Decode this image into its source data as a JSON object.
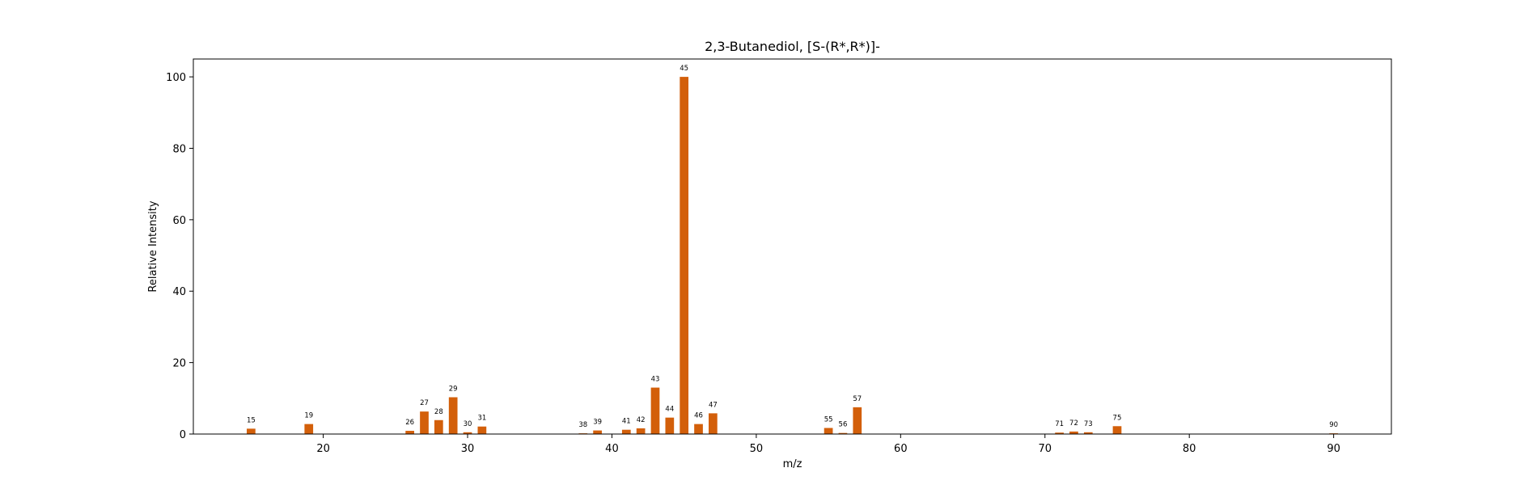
{
  "chart_data": {
    "type": "bar",
    "title": "2,3-Butanediol, [S-(R*,R*)]-",
    "xlabel": "m/z",
    "ylabel": "Relative Intensity",
    "xlim": [
      11,
      94
    ],
    "ylim": [
      0,
      105
    ],
    "x_ticks": [
      20,
      30,
      40,
      50,
      60,
      70,
      80,
      90
    ],
    "y_ticks": [
      0,
      20,
      40,
      60,
      80,
      100
    ],
    "grid": false,
    "bar_color": "#d35f0a",
    "peaks": [
      {
        "mz": 15,
        "intensity": 1.5,
        "label": "15"
      },
      {
        "mz": 19,
        "intensity": 2.8,
        "label": "19"
      },
      {
        "mz": 26,
        "intensity": 0.9,
        "label": "26"
      },
      {
        "mz": 27,
        "intensity": 6.3,
        "label": "27"
      },
      {
        "mz": 28,
        "intensity": 3.9,
        "label": "28"
      },
      {
        "mz": 29,
        "intensity": 10.3,
        "label": "29"
      },
      {
        "mz": 30,
        "intensity": 0.5,
        "label": "30"
      },
      {
        "mz": 31,
        "intensity": 2.1,
        "label": "31"
      },
      {
        "mz": 38,
        "intensity": 0.2,
        "label": "38"
      },
      {
        "mz": 39,
        "intensity": 1.0,
        "label": "39"
      },
      {
        "mz": 41,
        "intensity": 1.2,
        "label": "41"
      },
      {
        "mz": 42,
        "intensity": 1.6,
        "label": "42"
      },
      {
        "mz": 43,
        "intensity": 13.0,
        "label": "43"
      },
      {
        "mz": 44,
        "intensity": 4.6,
        "label": "44"
      },
      {
        "mz": 45,
        "intensity": 100.0,
        "label": "45"
      },
      {
        "mz": 46,
        "intensity": 2.8,
        "label": "46"
      },
      {
        "mz": 47,
        "intensity": 5.8,
        "label": "47"
      },
      {
        "mz": 55,
        "intensity": 1.7,
        "label": "55"
      },
      {
        "mz": 56,
        "intensity": 0.3,
        "label": "56"
      },
      {
        "mz": 57,
        "intensity": 7.5,
        "label": "57"
      },
      {
        "mz": 71,
        "intensity": 0.4,
        "label": "71"
      },
      {
        "mz": 72,
        "intensity": 0.7,
        "label": "72"
      },
      {
        "mz": 73,
        "intensity": 0.5,
        "label": "73"
      },
      {
        "mz": 75,
        "intensity": 2.2,
        "label": "75"
      },
      {
        "mz": 90,
        "intensity": 0.2,
        "label": "90"
      }
    ]
  }
}
